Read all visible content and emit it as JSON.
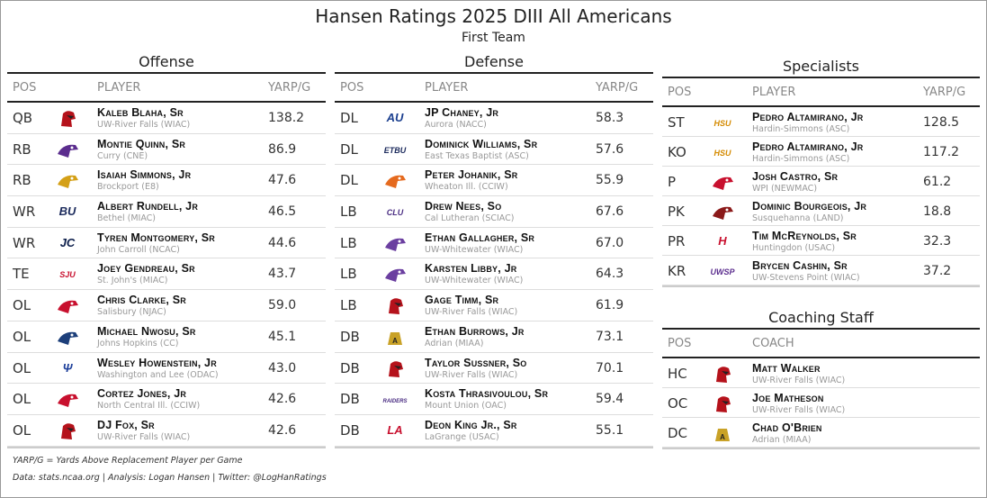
{
  "title": "Hansen Ratings 2025 DIII All Americans",
  "subtitle": "First Team",
  "offense": {
    "title": "Offense",
    "headers": {
      "pos": "POS",
      "player": "PLAYER",
      "val": "YARP/G"
    },
    "rows": [
      {
        "pos": "QB",
        "name": "Kaleb Blaha, Sr",
        "school": "UW-River Falls (WIAC)",
        "value": "138.2",
        "logo": "falcon",
        "color": "#b5121b"
      },
      {
        "pos": "RB",
        "name": "Montie Quinn, Sr",
        "school": "Curry (CNE)",
        "value": "86.9",
        "logo": "colonel",
        "color": "#5b2d8e"
      },
      {
        "pos": "RB",
        "name": "Isaiah Simmons, Jr",
        "school": "Brockport (E8)",
        "value": "47.6",
        "logo": "eagle",
        "color": "#d4a017"
      },
      {
        "pos": "WR",
        "name": "Albert Rundell, Jr",
        "school": "Bethel (MIAC)",
        "value": "46.5",
        "logo": "BU",
        "color": "#1b2a5c"
      },
      {
        "pos": "WR",
        "name": "Tyren Montgomery, Sr",
        "school": "John Carroll (NCAC)",
        "value": "44.6",
        "logo": "JC",
        "color": "#0d1f4c"
      },
      {
        "pos": "TE",
        "name": "Joey Gendreau, Sr",
        "school": "St. John's (MIAC)",
        "value": "43.7",
        "logo": "SJU",
        "color": "#c8102e"
      },
      {
        "pos": "OL",
        "name": "Chris Clarke, Sr",
        "school": "Salisbury (NJAC)",
        "value": "59.0",
        "logo": "gull",
        "color": "#c8102e"
      },
      {
        "pos": "OL",
        "name": "Michael Nwosu, Sr",
        "school": "Johns Hopkins (CC)",
        "value": "45.1",
        "logo": "jay",
        "color": "#1d3f7a"
      },
      {
        "pos": "OL",
        "name": "Wesley Howenstein, Jr",
        "school": "Washington and Lee (ODAC)",
        "value": "43.0",
        "logo": "WL",
        "color": "#1d3f9a"
      },
      {
        "pos": "OL",
        "name": "Cortez Jones, Jr",
        "school": "North Central Ill. (CCIW)",
        "value": "42.6",
        "logo": "cardinal",
        "color": "#c8102e"
      },
      {
        "pos": "OL",
        "name": "DJ Fox, Sr",
        "school": "UW-River Falls (WIAC)",
        "value": "42.6",
        "logo": "falcon",
        "color": "#b5121b"
      }
    ]
  },
  "defense": {
    "title": "Defense",
    "headers": {
      "pos": "POS",
      "player": "PLAYER",
      "val": "YARP/G"
    },
    "rows": [
      {
        "pos": "DL",
        "name": "JP Chaney, Jr",
        "school": "Aurora (NACC)",
        "value": "58.3",
        "logo": "AU",
        "color": "#1b3f8f"
      },
      {
        "pos": "DL",
        "name": "Dominick Williams, Sr",
        "school": "East Texas Baptist (ASC)",
        "value": "57.6",
        "logo": "ETBU",
        "color": "#1b2a5c"
      },
      {
        "pos": "DL",
        "name": "Peter Johanik, Sr",
        "school": "Wheaton Ill. (CCIW)",
        "value": "55.9",
        "logo": "thunder",
        "color": "#e56a1e"
      },
      {
        "pos": "LB",
        "name": "Drew Nees, So",
        "school": "Cal Lutheran (SCIAC)",
        "value": "67.6",
        "logo": "CLU",
        "color": "#4b2e83"
      },
      {
        "pos": "LB",
        "name": "Ethan Gallagher, Sr",
        "school": "UW-Whitewater (WIAC)",
        "value": "67.0",
        "logo": "hawk",
        "color": "#6b3fa0"
      },
      {
        "pos": "LB",
        "name": "Karsten Libby, Jr",
        "school": "UW-Whitewater (WIAC)",
        "value": "64.3",
        "logo": "hawk",
        "color": "#6b3fa0"
      },
      {
        "pos": "LB",
        "name": "Gage Timm, Sr",
        "school": "UW-River Falls (WIAC)",
        "value": "61.9",
        "logo": "falcon",
        "color": "#b5121b"
      },
      {
        "pos": "DB",
        "name": "Ethan Burrows, Jr",
        "school": "Adrian (MIAA)",
        "value": "73.1",
        "logo": "bulldog",
        "color": "#c9a227"
      },
      {
        "pos": "DB",
        "name": "Taylor Sussner, So",
        "school": "UW-River Falls (WIAC)",
        "value": "70.1",
        "logo": "falcon",
        "color": "#b5121b"
      },
      {
        "pos": "DB",
        "name": "Kosta Thrasivoulou, Sr",
        "school": "Mount Union (OAC)",
        "value": "59.4",
        "logo": "RAIDERS",
        "color": "#4b2e83"
      },
      {
        "pos": "DB",
        "name": "Deon King Jr., Sr",
        "school": "LaGrange (USAC)",
        "value": "55.1",
        "logo": "LA",
        "color": "#c8102e"
      }
    ]
  },
  "specialists": {
    "title": "Specialists",
    "headers": {
      "pos": "POS",
      "player": "PLAYER",
      "val": "YARP/G"
    },
    "rows": [
      {
        "pos": "ST",
        "name": "Pedro Altamirano, Jr",
        "school": "Hardin-Simmons (ASC)",
        "value": "128.5",
        "logo": "HSU",
        "color": "#d48a00"
      },
      {
        "pos": "KO",
        "name": "Pedro Altamirano, Jr",
        "school": "Hardin-Simmons (ASC)",
        "value": "117.2",
        "logo": "HSU",
        "color": "#d48a00"
      },
      {
        "pos": "P",
        "name": "Josh Castro, Sr",
        "school": "WPI (NEWMAC)",
        "value": "61.2",
        "logo": "goat",
        "color": "#c8102e"
      },
      {
        "pos": "PK",
        "name": "Dominic Bourgeois, Jr",
        "school": "Susquehanna (LAND)",
        "value": "18.8",
        "logo": "river",
        "color": "#8b1a1a"
      },
      {
        "pos": "PR",
        "name": "Tim McReynolds, Sr",
        "school": "Huntingdon (USAC)",
        "value": "32.3",
        "logo": "H",
        "color": "#c8102e"
      },
      {
        "pos": "KR",
        "name": "Brycen Cashin, Sr",
        "school": "UW-Stevens Point (WIAC)",
        "value": "37.2",
        "logo": "UWSP",
        "color": "#5b2d8e"
      }
    ]
  },
  "coaching": {
    "title": "Coaching Staff",
    "headers": {
      "pos": "POS",
      "player": "COACH"
    },
    "rows": [
      {
        "pos": "HC",
        "name": "Matt Walker",
        "school": "UW-River Falls (WIAC)",
        "logo": "falcon",
        "color": "#b5121b"
      },
      {
        "pos": "OC",
        "name": "Joe Matheson",
        "school": "UW-River Falls (WIAC)",
        "logo": "falcon",
        "color": "#b5121b"
      },
      {
        "pos": "DC",
        "name": "Chad O'Brien",
        "school": "Adrian (MIAA)",
        "logo": "bulldog",
        "color": "#c9a227"
      }
    ]
  },
  "footnote": "YARP/G = Yards Above Replacement Player per Game",
  "credits": "Data: stats.ncaa.org | Analysis: Logan Hansen | Twitter: @LogHanRatings"
}
